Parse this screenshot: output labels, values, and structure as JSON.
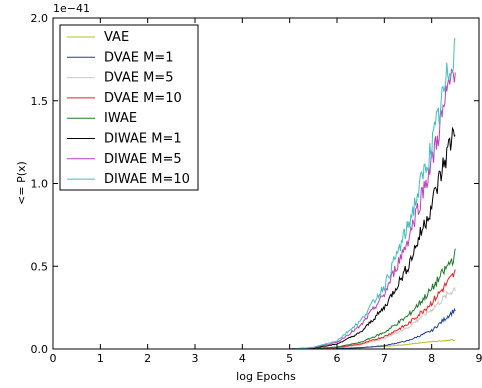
{
  "chart_data": {
    "type": "line",
    "xlabel": "log Epochs",
    "ylabel": "<= P(x)",
    "y_offset_label": "1e−41",
    "xlim": [
      0,
      9
    ],
    "ylim": [
      0.0,
      2.0
    ],
    "x_ticks": [
      0,
      1,
      2,
      3,
      4,
      5,
      6,
      7,
      8,
      9
    ],
    "y_ticks": [
      0.0,
      0.5,
      1.0,
      1.5,
      2.0
    ],
    "y_tick_labels": [
      "0.0",
      "0.5",
      "1.0",
      "1.5",
      "2.0"
    ],
    "grid": false,
    "legend_position": "top-left",
    "series": [
      {
        "name": "VAE",
        "color": "#bcbd22",
        "x": [
          0,
          4.5,
          5.0,
          5.5,
          6.0,
          6.5,
          7.0,
          7.5,
          8.0,
          8.5
        ],
        "values": [
          0,
          0,
          0,
          0.001,
          0.003,
          0.008,
          0.016,
          0.028,
          0.045,
          0.055
        ]
      },
      {
        "name": "DVAE M=1",
        "color": "#1f3f9f",
        "x": [
          0,
          4.5,
          5.0,
          5.5,
          6.0,
          6.5,
          7.0,
          7.5,
          8.0,
          8.5
        ],
        "values": [
          0,
          0,
          0,
          0.001,
          0.003,
          0.008,
          0.02,
          0.05,
          0.11,
          0.24
        ]
      },
      {
        "name": "DVAE M=5",
        "color": "#c8c8c8",
        "x": [
          0,
          4.5,
          5.0,
          5.5,
          6.0,
          6.5,
          7.0,
          7.5,
          8.0,
          8.5
        ],
        "values": [
          0,
          0,
          0,
          0.002,
          0.008,
          0.025,
          0.065,
          0.13,
          0.24,
          0.37
        ]
      },
      {
        "name": "DVAE M=10",
        "color": "#e8231f",
        "x": [
          0,
          4.5,
          5.0,
          5.5,
          6.0,
          6.5,
          7.0,
          7.5,
          8.0,
          8.5
        ],
        "values": [
          0,
          0,
          0,
          0.002,
          0.009,
          0.03,
          0.075,
          0.15,
          0.28,
          0.46
        ]
      },
      {
        "name": "IWAE",
        "color": "#207a2a",
        "x": [
          0,
          4.5,
          5.0,
          5.5,
          6.0,
          6.5,
          7.0,
          7.5,
          8.0,
          8.5
        ],
        "values": [
          0,
          0,
          0,
          0.003,
          0.012,
          0.04,
          0.1,
          0.2,
          0.36,
          0.57
        ]
      },
      {
        "name": "DIWAE M=1",
        "color": "#000000",
        "x": [
          0,
          4.5,
          5.0,
          5.5,
          6.0,
          6.5,
          7.0,
          7.5,
          8.0,
          8.5
        ],
        "values": [
          0,
          0,
          0,
          0.006,
          0.03,
          0.1,
          0.25,
          0.5,
          0.87,
          1.35
        ]
      },
      {
        "name": "DIWAE M=5",
        "color": "#bf3fbf",
        "x": [
          0,
          4.5,
          5.0,
          5.5,
          6.0,
          6.5,
          7.0,
          7.5,
          8.0,
          8.5
        ],
        "values": [
          0,
          0,
          0,
          0.008,
          0.04,
          0.14,
          0.33,
          0.66,
          1.13,
          1.75
        ]
      },
      {
        "name": "DIWAE M=10",
        "color": "#3fbfbf",
        "x": [
          0,
          4.5,
          5.0,
          5.5,
          6.0,
          6.5,
          7.0,
          7.5,
          8.0,
          8.5
        ],
        "values": [
          0,
          0,
          0,
          0.01,
          0.05,
          0.17,
          0.38,
          0.74,
          1.22,
          1.85
        ]
      }
    ]
  }
}
